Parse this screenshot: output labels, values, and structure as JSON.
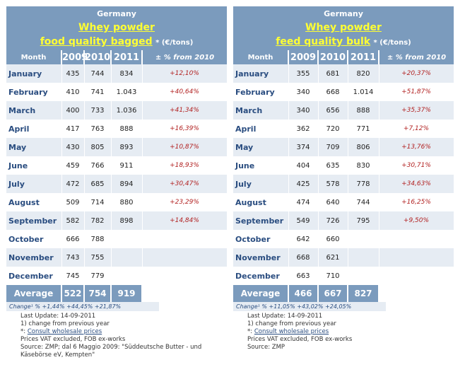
{
  "left": {
    "country": "Germany",
    "product": "Whey powder",
    "grade": "food quality bagged",
    "unit": "* (€/tons)",
    "headers": [
      "Month",
      "2009",
      "2010",
      "2011",
      "± % from 2010"
    ],
    "rows": [
      [
        "January",
        "435",
        "744",
        "834",
        "+12,10%"
      ],
      [
        "February",
        "410",
        "741",
        "1.043",
        "+40,64%"
      ],
      [
        "March",
        "400",
        "733",
        "1.036",
        "+41,34%"
      ],
      [
        "April",
        "417",
        "763",
        "888",
        "+16,39%"
      ],
      [
        "May",
        "430",
        "805",
        "893",
        "+10,87%"
      ],
      [
        "June",
        "459",
        "766",
        "911",
        "+18,93%"
      ],
      [
        "July",
        "472",
        "685",
        "894",
        "+30,47%"
      ],
      [
        "August",
        "509",
        "714",
        "880",
        "+23,29%"
      ],
      [
        "September",
        "582",
        "782",
        "898",
        "+14,84%"
      ],
      [
        "October",
        "666",
        "788",
        "",
        ""
      ],
      [
        "November",
        "743",
        "755",
        "",
        ""
      ],
      [
        "December",
        "745",
        "779",
        "",
        ""
      ]
    ],
    "average": [
      "Average",
      "522",
      "754",
      "919"
    ],
    "change": "Change¹ % +1,44% +44,45% +21,87%",
    "notes": {
      "last_update": "Last Update: 14-09-2011",
      "note1": "1) change from previous year",
      "star": "*: ",
      "link": "Consult wholesale prices",
      "vat": "Prices VAT excluded, FOB ex-works",
      "source": "Source: ZMP; dal 6 Maggio 2009: \"Süddeutsche Butter - und Käsebörse eV, Kempten\""
    }
  },
  "right": {
    "country": "Germany",
    "product": "Whey powder",
    "grade": "feed quality bulk",
    "unit": "* (€/tons)",
    "headers": [
      "Month",
      "2009",
      "2010",
      "2011",
      "± % from 2010"
    ],
    "rows": [
      [
        "January",
        "355",
        "681",
        "820",
        "+20,37%"
      ],
      [
        "February",
        "340",
        "668",
        "1.014",
        "+51,87%"
      ],
      [
        "March",
        "340",
        "656",
        "888",
        "+35,37%"
      ],
      [
        "April",
        "362",
        "720",
        "771",
        "+7,12%"
      ],
      [
        "May",
        "374",
        "709",
        "806",
        "+13,76%"
      ],
      [
        "June",
        "404",
        "635",
        "830",
        "+30,71%"
      ],
      [
        "July",
        "425",
        "578",
        "778",
        "+34,63%"
      ],
      [
        "August",
        "474",
        "640",
        "744",
        "+16,25%"
      ],
      [
        "September",
        "549",
        "726",
        "795",
        "+9,50%"
      ],
      [
        "October",
        "642",
        "660",
        "",
        ""
      ],
      [
        "November",
        "668",
        "621",
        "",
        ""
      ],
      [
        "December",
        "663",
        "710",
        "",
        ""
      ]
    ],
    "average": [
      "Average",
      "466",
      "667",
      "827"
    ],
    "change": "Change¹ % +11,05% +43,02% +24,05%",
    "notes": {
      "last_update": "Last Update: 14-09-2011",
      "note1": "1) change from previous year",
      "star": "*: ",
      "link": "Consult wholesale prices",
      "vat": "Prices VAT excluded, FOB ex-works",
      "source": "Source: ZMP"
    }
  }
}
